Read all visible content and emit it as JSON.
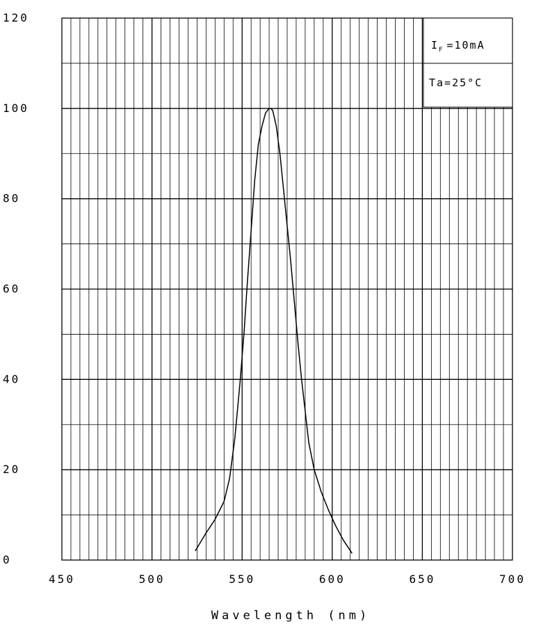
{
  "chart_data": {
    "type": "line",
    "xlabel": "Wavelength (nm)",
    "ylabel": "",
    "xlim": [
      450,
      700
    ],
    "ylim": [
      0,
      120
    ],
    "x_ticks": [
      "450",
      "500",
      "550",
      "600",
      "650",
      "700"
    ],
    "y_ticks": [
      "0",
      "20",
      "40",
      "60",
      "80",
      "100",
      "120"
    ],
    "grid": true,
    "annotations": {
      "current_symbol": "I",
      "current_subscript": "F",
      "current_value": "=10mA",
      "temperature": "Ta=25°C"
    },
    "series": [
      {
        "x": [
          524,
          530,
          535,
          540,
          543,
          546,
          549,
          551,
          553,
          555,
          557,
          559,
          561,
          563,
          565,
          566,
          567,
          569,
          571,
          573,
          575,
          577,
          579,
          581,
          583,
          585,
          587,
          590,
          594,
          598,
          602,
          606,
          611
        ],
        "y": [
          2,
          6,
          9,
          13,
          18,
          27,
          40,
          50,
          62,
          73,
          84,
          92,
          96,
          99,
          100,
          100,
          99.5,
          96,
          90,
          82,
          74,
          66,
          57,
          48,
          40,
          33,
          26,
          20,
          15,
          11,
          7.5,
          4.5,
          1.5
        ]
      }
    ]
  }
}
